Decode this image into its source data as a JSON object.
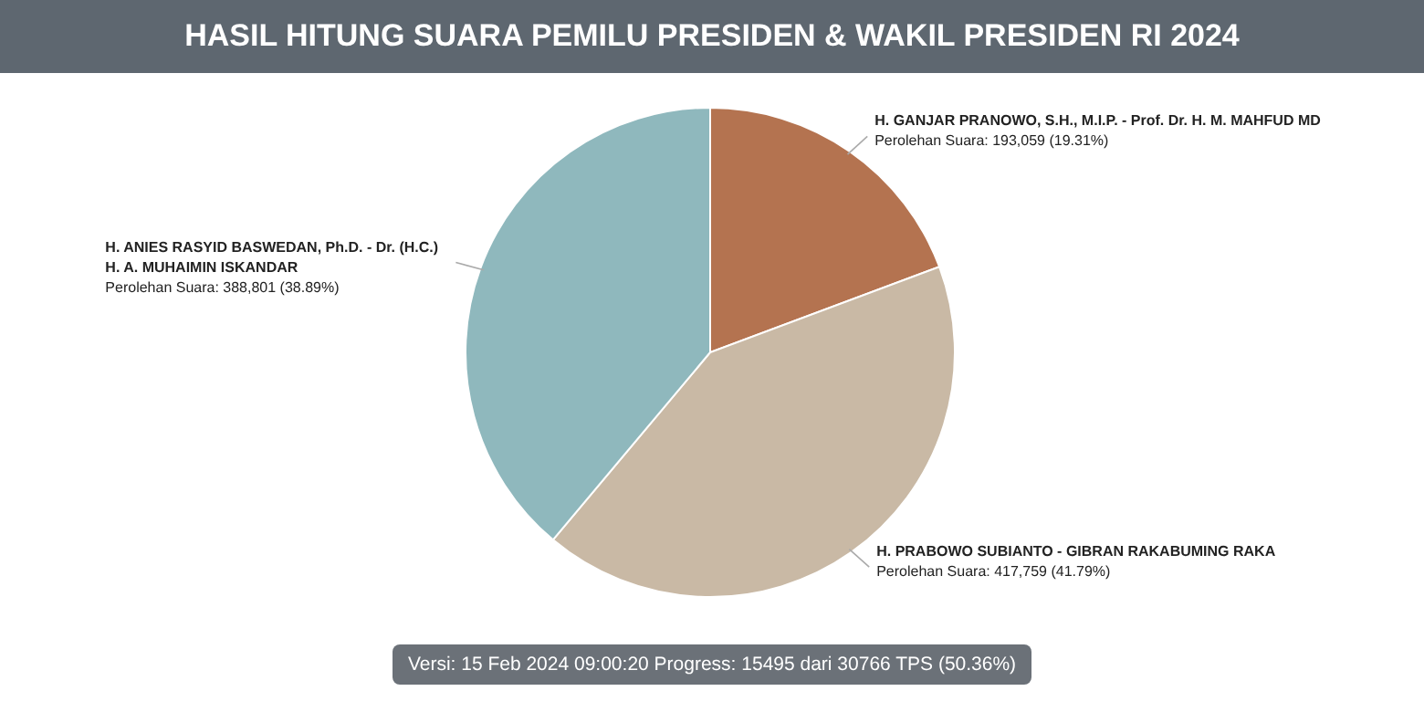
{
  "chart_data": {
    "type": "pie",
    "title": "HASIL HITUNG SUARA PEMILU PRESIDEN & WAKIL PRESIDEN RI 2024",
    "categories": [
      "H. GANJAR PRANOWO, S.H., M.I.P. - Prof. Dr. H. M. MAHFUD MD",
      "H. PRABOWO SUBIANTO - GIBRAN RAKABUMING RAKA",
      "H. ANIES RASYID BASWEDAN, Ph.D. - Dr. (H.C.) H. A. MUHAIMIN ISKANDAR"
    ],
    "values": [
      193059,
      417759,
      388801
    ],
    "colors": [
      "#b47350",
      "#c9b9a5",
      "#8fb8bd"
    ],
    "value_labels": [
      "Perolehan Suara: 193,059 (19.31%)",
      "Perolehan Suara: 417,759 (41.79%)",
      "Perolehan Suara: 388,801 (38.89%)"
    ],
    "annotations": [
      "Versi: 15 Feb 2024 09:00:20 Progress: 15495 dari 30766 TPS (50.36%)"
    ]
  }
}
